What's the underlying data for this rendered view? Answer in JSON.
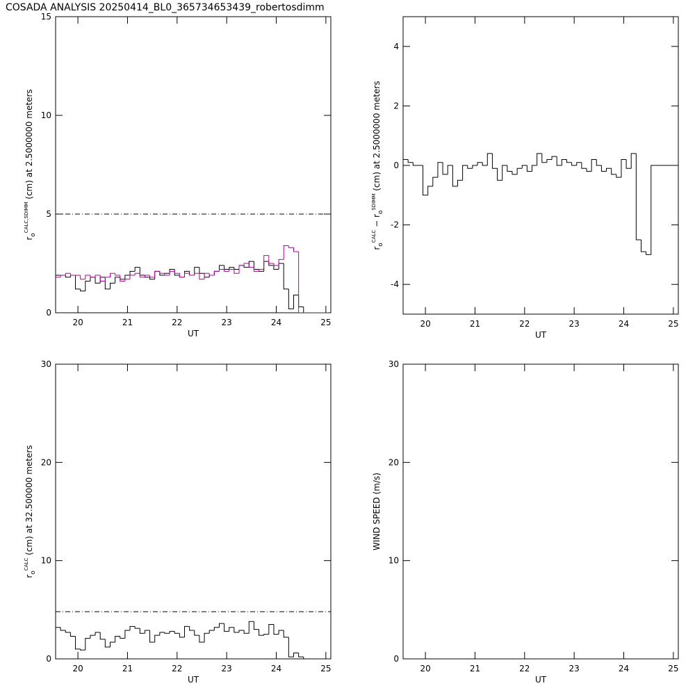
{
  "title": "COSADA ANALYSIS 20250414_BL0_365734653439_robertosdimm",
  "chart_data": [
    {
      "type": "line",
      "step": true,
      "xlabel": "UT",
      "ylabel_parts": [
        {
          "text": "r",
          "pos": "base"
        },
        {
          "text": "o",
          "pos": "sub"
        },
        {
          "text": "CALC,SDIMM",
          "pos": "sup"
        },
        {
          "text": " (cm)  at  2.5000000 meters",
          "pos": "base"
        }
      ],
      "x": [
        19.6,
        19.7,
        19.8,
        19.9,
        20.0,
        20.1,
        20.2,
        20.3,
        20.4,
        20.5,
        20.6,
        20.7,
        20.8,
        20.9,
        21.0,
        21.1,
        21.2,
        21.3,
        21.4,
        21.5,
        21.6,
        21.7,
        21.8,
        21.9,
        22.0,
        22.1,
        22.2,
        22.3,
        22.4,
        22.5,
        22.6,
        22.7,
        22.8,
        22.9,
        23.0,
        23.1,
        23.2,
        23.3,
        23.4,
        23.5,
        23.6,
        23.7,
        23.8,
        23.9,
        24.0,
        24.1,
        24.2,
        24.3,
        24.4,
        24.5,
        24.6,
        24.7,
        24.8,
        24.9,
        25.0
      ],
      "xlim": [
        19.55,
        25.1
      ],
      "xticks": [
        20,
        21,
        22,
        23,
        24,
        25
      ],
      "ylim": [
        0,
        15
      ],
      "yticks": [
        0,
        5,
        10,
        15
      ],
      "hline": 5,
      "series": [
        {
          "color": "#000000",
          "values": [
            1.9,
            1.9,
            1.8,
            1.9,
            1.2,
            1.1,
            1.6,
            1.8,
            1.5,
            1.8,
            1.2,
            1.5,
            1.8,
            1.7,
            1.9,
            2.1,
            2.3,
            1.9,
            1.8,
            1.7,
            2.1,
            1.9,
            2.0,
            2.2,
            1.9,
            1.8,
            2.1,
            1.9,
            2.3,
            2.0,
            1.8,
            1.9,
            2.1,
            2.4,
            2.2,
            2.3,
            2.2,
            2.4,
            2.3,
            2.6,
            2.2,
            2.1,
            2.6,
            2.4,
            2.2,
            2.5,
            1.2,
            0.2,
            0.9,
            0.3,
            0,
            null,
            null,
            null,
            null
          ]
        },
        {
          "color": "#b4009e",
          "values": [
            1.8,
            1.9,
            2.0,
            1.9,
            1.9,
            1.7,
            1.9,
            1.8,
            1.9,
            1.6,
            1.8,
            2.0,
            1.9,
            1.6,
            1.7,
            1.9,
            2.0,
            1.8,
            1.9,
            1.8,
            2.1,
            2.0,
            1.9,
            2.1,
            2.0,
            1.8,
            2.0,
            1.9,
            2.0,
            1.7,
            2.0,
            1.9,
            2.1,
            2.2,
            2.1,
            2.2,
            2.0,
            2.4,
            2.5,
            2.3,
            2.1,
            2.2,
            2.9,
            2.5,
            2.4,
            2.7,
            3.4,
            3.3,
            3.1,
            0,
            0,
            0,
            0,
            0,
            0
          ]
        }
      ]
    },
    {
      "type": "line",
      "step": true,
      "xlabel": "UT",
      "ylabel_parts": [
        {
          "text": "r",
          "pos": "base"
        },
        {
          "text": "o",
          "pos": "sub"
        },
        {
          "text": "CALC",
          "pos": "sup"
        },
        {
          "text": "  −  r",
          "pos": "base"
        },
        {
          "text": "o",
          "pos": "sub"
        },
        {
          "text": "SDIMM",
          "pos": "sup"
        },
        {
          "text": " (cm) at 2.5000000 meters",
          "pos": "base"
        }
      ],
      "x": [
        19.6,
        19.7,
        19.8,
        19.9,
        20.0,
        20.1,
        20.2,
        20.3,
        20.4,
        20.5,
        20.6,
        20.7,
        20.8,
        20.9,
        21.0,
        21.1,
        21.2,
        21.3,
        21.4,
        21.5,
        21.6,
        21.7,
        21.8,
        21.9,
        22.0,
        22.1,
        22.2,
        22.3,
        22.4,
        22.5,
        22.6,
        22.7,
        22.8,
        22.9,
        23.0,
        23.1,
        23.2,
        23.3,
        23.4,
        23.5,
        23.6,
        23.7,
        23.8,
        23.9,
        24.0,
        24.1,
        24.2,
        24.3,
        24.4,
        24.5,
        24.6,
        24.7,
        24.8,
        24.9,
        25.0
      ],
      "xlim": [
        19.55,
        25.1
      ],
      "xticks": [
        20,
        21,
        22,
        23,
        24,
        25
      ],
      "ylim": [
        -5,
        5
      ],
      "yticks": [
        -4,
        -2,
        0,
        2,
        4
      ],
      "series": [
        {
          "color": "#000000",
          "values": [
            0.2,
            0.1,
            0,
            0,
            -1.0,
            -0.7,
            -0.4,
            0.1,
            -0.3,
            0,
            -0.7,
            -0.5,
            0,
            -0.1,
            0,
            0.1,
            0,
            0.4,
            -0.1,
            -0.5,
            0,
            -0.2,
            -0.3,
            -0.1,
            0,
            -0.2,
            0,
            0.4,
            0.1,
            0.2,
            0.3,
            0,
            0.2,
            0.1,
            0,
            0.1,
            -0.1,
            -0.2,
            0.2,
            0,
            -0.2,
            -0.1,
            -0.3,
            -0.4,
            0.2,
            -0.1,
            0.4,
            -2.5,
            -2.9,
            -3.0,
            0,
            0,
            0,
            0,
            0
          ]
        }
      ]
    },
    {
      "type": "line",
      "step": true,
      "xlabel": "UT",
      "ylabel_parts": [
        {
          "text": "r",
          "pos": "base"
        },
        {
          "text": "o",
          "pos": "sub"
        },
        {
          "text": "CALC",
          "pos": "sup"
        },
        {
          "text": " (cm) at 32.500000 meters",
          "pos": "base"
        }
      ],
      "x": [
        19.6,
        19.7,
        19.8,
        19.9,
        20.0,
        20.1,
        20.2,
        20.3,
        20.4,
        20.5,
        20.6,
        20.7,
        20.8,
        20.9,
        21.0,
        21.1,
        21.2,
        21.3,
        21.4,
        21.5,
        21.6,
        21.7,
        21.8,
        21.9,
        22.0,
        22.1,
        22.2,
        22.3,
        22.4,
        22.5,
        22.6,
        22.7,
        22.8,
        22.9,
        23.0,
        23.1,
        23.2,
        23.3,
        23.4,
        23.5,
        23.6,
        23.7,
        23.8,
        23.9,
        24.0,
        24.1,
        24.2,
        24.3,
        24.4,
        24.5,
        24.6,
        24.7,
        24.8,
        24.9,
        25.0
      ],
      "xlim": [
        19.55,
        25.1
      ],
      "xticks": [
        20,
        21,
        22,
        23,
        24,
        25
      ],
      "ylim": [
        0,
        30
      ],
      "yticks": [
        0,
        10,
        20,
        30
      ],
      "hline": 4.8,
      "series": [
        {
          "color": "#000000",
          "values": [
            3.2,
            2.9,
            2.7,
            2.3,
            1.0,
            0.9,
            2.1,
            2.4,
            2.7,
            2.0,
            1.2,
            1.7,
            2.3,
            2.1,
            2.9,
            3.3,
            3.1,
            2.6,
            2.9,
            1.7,
            2.4,
            2.7,
            2.6,
            2.8,
            2.6,
            2.2,
            3.3,
            2.9,
            2.4,
            1.7,
            2.6,
            2.9,
            3.2,
            3.6,
            2.8,
            3.2,
            2.7,
            2.9,
            2.6,
            3.8,
            3.0,
            2.4,
            2.5,
            3.5,
            2.5,
            2.9,
            2.2,
            0.2,
            0.6,
            0.2,
            0,
            null,
            null,
            null,
            null
          ]
        }
      ]
    },
    {
      "type": "line",
      "step": true,
      "xlabel": "UT",
      "ylabel_parts": [
        {
          "text": "WIND SPEED (m/s)",
          "pos": "base"
        }
      ],
      "xlim": [
        19.55,
        25.1
      ],
      "xticks": [
        20,
        21,
        22,
        23,
        24,
        25
      ],
      "ylim": [
        0,
        30
      ],
      "yticks": [
        0,
        10,
        20,
        30
      ],
      "series": []
    }
  ]
}
